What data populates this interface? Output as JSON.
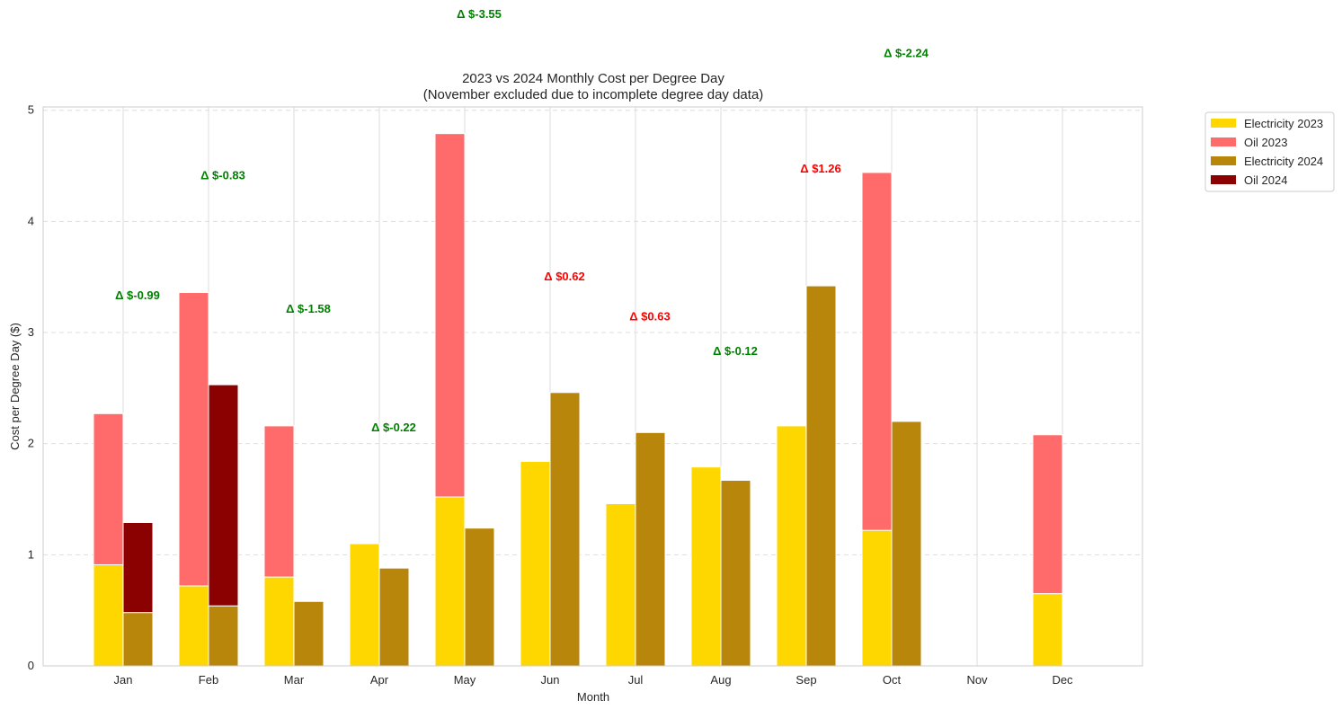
{
  "chart_data": {
    "type": "bar",
    "title": "2023 vs 2024 Monthly Cost per Degree Day",
    "subtitle": "(November excluded due to incomplete degree day data)",
    "xlabel": "Month",
    "ylabel": "Cost per Degree Day ($)",
    "ylim": [
      0,
      5.03
    ],
    "yticks": [
      0,
      1,
      2,
      3,
      4,
      5
    ],
    "categories": [
      "Jan",
      "Feb",
      "Mar",
      "Apr",
      "May",
      "Jun",
      "Jul",
      "Aug",
      "Sep",
      "Oct",
      "Nov",
      "Dec"
    ],
    "series": [
      {
        "name": "Electricity 2023",
        "color": "#FFD700",
        "group": "2023",
        "stack": "base",
        "values": [
          0.91,
          0.72,
          0.8,
          1.1,
          1.52,
          1.84,
          1.46,
          1.79,
          2.16,
          1.22,
          0,
          0.65
        ]
      },
      {
        "name": "Oil 2023",
        "color": "#FF6B6B",
        "group": "2023",
        "stack": "top",
        "values": [
          1.36,
          2.64,
          1.36,
          0,
          3.27,
          0,
          0,
          0,
          0,
          3.22,
          0,
          1.43
        ]
      },
      {
        "name": "Electricity 2024",
        "color": "#B8860B",
        "group": "2024",
        "stack": "base",
        "values": [
          0.48,
          0.54,
          0.58,
          0.88,
          1.24,
          2.46,
          2.1,
          1.67,
          3.42,
          2.2,
          0,
          0
        ]
      },
      {
        "name": "Oil 2024",
        "color": "#8B0000",
        "group": "2024",
        "stack": "top",
        "values": [
          0.81,
          1.99,
          0,
          0,
          0,
          0,
          0,
          0,
          0,
          0,
          0,
          0
        ]
      }
    ],
    "annotations": [
      {
        "month": "Jan",
        "text": "Δ $-0.99",
        "y": 3.34,
        "color": "#008000"
      },
      {
        "month": "Feb",
        "text": "Δ $-0.83",
        "y": 4.42,
        "color": "#008000"
      },
      {
        "month": "Mar",
        "text": "Δ $-1.58",
        "y": 3.22,
        "color": "#008000"
      },
      {
        "month": "Apr",
        "text": "Δ $-0.22",
        "y": 2.15,
        "color": "#008000"
      },
      {
        "month": "May",
        "text": "Δ $-3.55",
        "y": 5.87,
        "color": "#008000"
      },
      {
        "month": "Jun",
        "text": "Δ $0.62",
        "y": 3.51,
        "color": "#FF0000"
      },
      {
        "month": "Jul",
        "text": "Δ $0.63",
        "y": 3.15,
        "color": "#FF0000"
      },
      {
        "month": "Aug",
        "text": "Δ $-0.12",
        "y": 2.84,
        "color": "#008000"
      },
      {
        "month": "Sep",
        "text": "Δ $1.26",
        "y": 4.48,
        "color": "#FF0000"
      },
      {
        "month": "Oct",
        "text": "Δ $-2.24",
        "y": 5.52,
        "color": "#008000"
      }
    ],
    "grid": true,
    "legend": "outside-top-right"
  }
}
